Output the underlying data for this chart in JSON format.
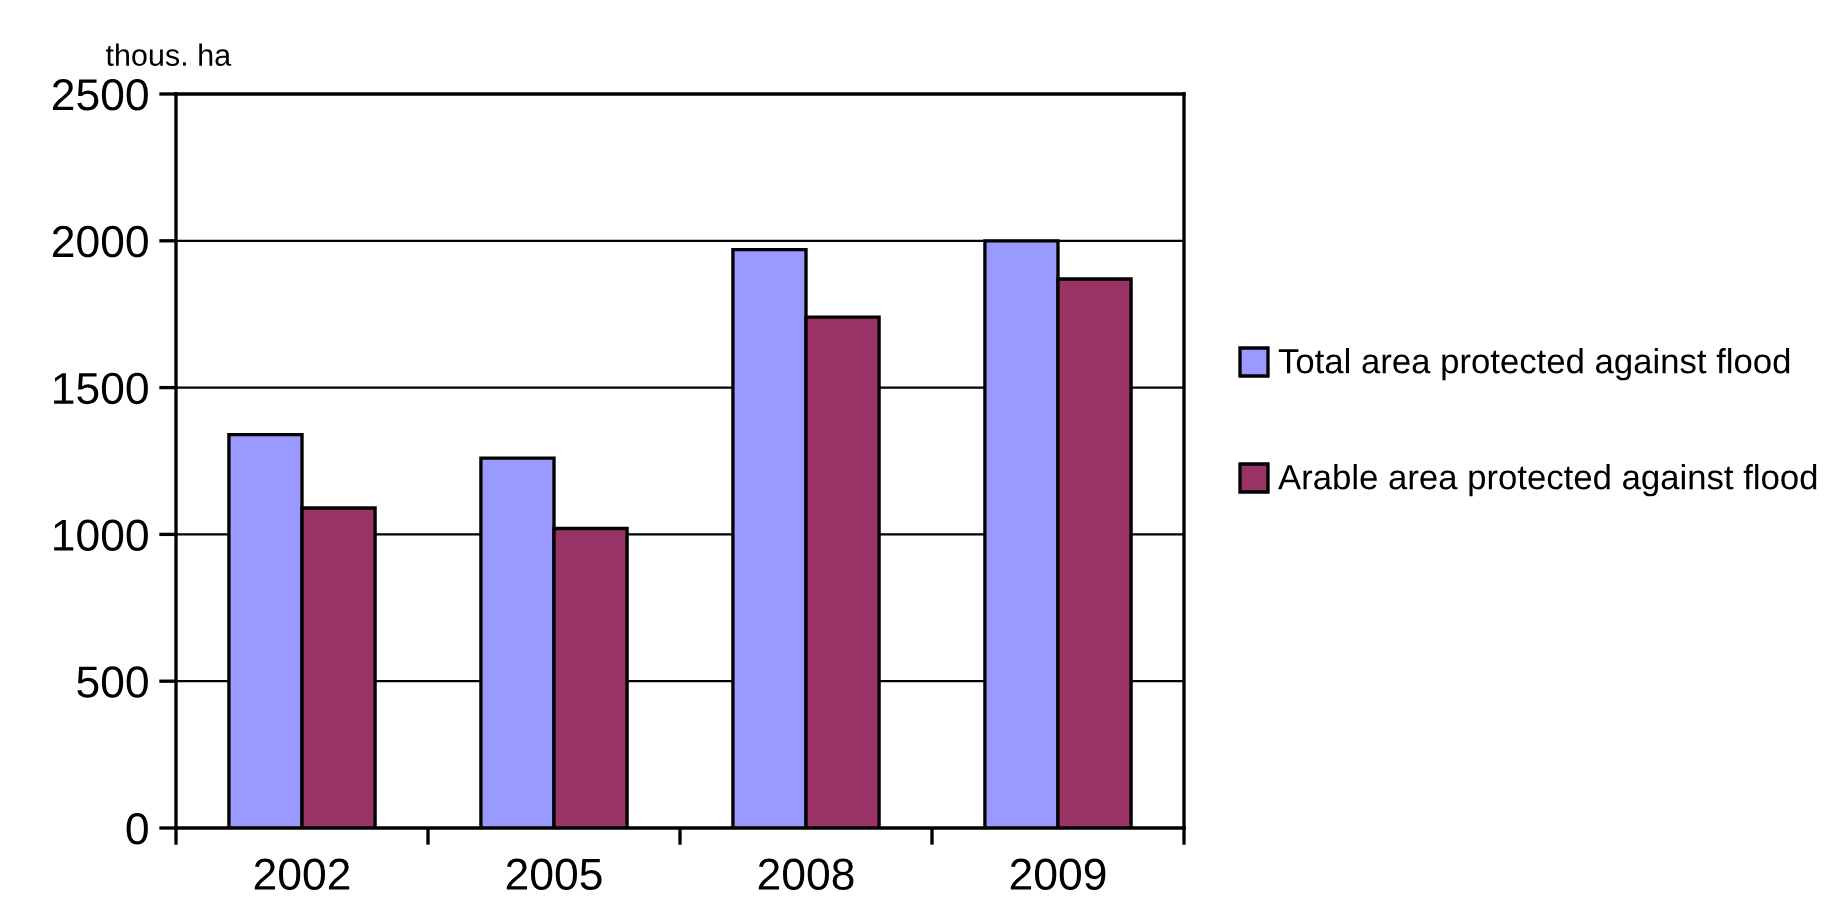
{
  "chart_data": {
    "type": "bar",
    "ylabel": "thous. ha",
    "categories": [
      "2002",
      "2005",
      "2008",
      "2009"
    ],
    "series": [
      {
        "name": "Total area protected against flood",
        "color": "#9999ff",
        "values": [
          1340,
          1260,
          1970,
          2000
        ]
      },
      {
        "name": "Arable area protected against flood",
        "color": "#993366",
        "values": [
          1090,
          1020,
          1740,
          1870
        ]
      }
    ],
    "ylim": [
      0,
      2500
    ],
    "yticks": [
      0,
      500,
      1000,
      1500,
      2000,
      2500
    ],
    "grid": "y",
    "legend": "right"
  }
}
